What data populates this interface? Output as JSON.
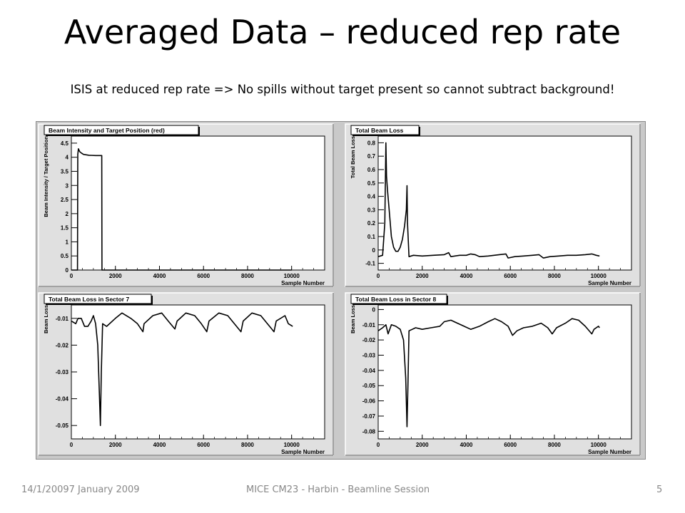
{
  "slide": {
    "title": "Averaged Data – reduced rep rate",
    "subtitle": "ISIS at reduced rep rate => No spills without target present so cannot subtract background!",
    "footer_date": "14/1/20097 January 2009",
    "footer_center": "MICE CM23 - Harbin - Beamline Session",
    "page_number": "5"
  },
  "chart_data": [
    {
      "type": "line",
      "title": "Beam Intensity and Target Position (red)",
      "xlabel": "Sample Number",
      "ylabel": "Beam Intensity / Target Position",
      "xlim": [
        0,
        11500
      ],
      "ylim": [
        0,
        4.75
      ],
      "xticks": [
        0,
        2000,
        4000,
        6000,
        8000,
        10000
      ],
      "xtick_labels": [
        "0",
        "2000",
        "4000",
        "6000",
        "8000",
        "10000"
      ],
      "yticks": [
        0,
        0.5,
        1,
        1.5,
        2,
        2.5,
        3,
        3.5,
        4,
        4.5
      ],
      "ytick_labels": [
        "0",
        "0.5",
        "1",
        "1.5",
        "2",
        "2.5",
        "3",
        "3.5",
        "4",
        "4.5"
      ],
      "grid": false,
      "series": [
        {
          "points": [
            [
              0,
              0
            ],
            [
              280,
              0
            ],
            [
              290,
              4.1
            ],
            [
              320,
              4.3
            ],
            [
              380,
              4.2
            ],
            [
              450,
              4.15
            ],
            [
              550,
              4.1
            ],
            [
              800,
              4.07
            ],
            [
              1100,
              4.06
            ],
            [
              1380,
              4.06
            ],
            [
              1390,
              0
            ],
            [
              10000,
              0
            ]
          ],
          "color": "#000000"
        }
      ]
    },
    {
      "type": "line",
      "title": "Total Beam Loss",
      "xlabel": "Sample Number",
      "ylabel": "Total Beam Loss",
      "xlim": [
        0,
        11500
      ],
      "ylim": [
        -0.15,
        0.85
      ],
      "xticks": [
        0,
        2000,
        4000,
        6000,
        8000,
        10000
      ],
      "xtick_labels": [
        "0",
        "2000",
        "4000",
        "6000",
        "8000",
        "10000"
      ],
      "yticks": [
        -0.1,
        0,
        0.1,
        0.2,
        0.3,
        0.4,
        0.5,
        0.6,
        0.7,
        0.8
      ],
      "ytick_labels": [
        "-0.1",
        "0",
        "0.1",
        "0.2",
        "0.3",
        "0.4",
        "0.5",
        "0.6",
        "0.7",
        "0.8"
      ],
      "grid": false,
      "series": [
        {
          "points": [
            [
              0,
              -0.05
            ],
            [
              200,
              -0.04
            ],
            [
              300,
              0.2
            ],
            [
              350,
              0.8
            ],
            [
              380,
              0.55
            ],
            [
              420,
              0.45
            ],
            [
              500,
              0.3
            ],
            [
              600,
              0.1
            ],
            [
              700,
              0.02
            ],
            [
              800,
              -0.01
            ],
            [
              900,
              -0.01
            ],
            [
              1000,
              0.02
            ],
            [
              1100,
              0.08
            ],
            [
              1200,
              0.18
            ],
            [
              1280,
              0.3
            ],
            [
              1310,
              0.48
            ],
            [
              1330,
              0.2
            ],
            [
              1400,
              -0.05
            ],
            [
              1600,
              -0.04
            ],
            [
              2000,
              -0.045
            ],
            [
              2500,
              -0.04
            ],
            [
              3000,
              -0.035
            ],
            [
              3200,
              -0.02
            ],
            [
              3300,
              -0.05
            ],
            [
              3700,
              -0.04
            ],
            [
              4000,
              -0.04
            ],
            [
              4200,
              -0.03
            ],
            [
              4400,
              -0.035
            ],
            [
              4600,
              -0.05
            ],
            [
              5000,
              -0.045
            ],
            [
              5500,
              -0.035
            ],
            [
              5800,
              -0.03
            ],
            [
              5900,
              -0.06
            ],
            [
              6200,
              -0.05
            ],
            [
              6600,
              -0.045
            ],
            [
              7000,
              -0.04
            ],
            [
              7300,
              -0.035
            ],
            [
              7500,
              -0.06
            ],
            [
              7800,
              -0.05
            ],
            [
              8200,
              -0.045
            ],
            [
              8600,
              -0.04
            ],
            [
              9000,
              -0.04
            ],
            [
              9400,
              -0.035
            ],
            [
              9700,
              -0.03
            ],
            [
              9900,
              -0.04
            ],
            [
              10050,
              -0.045
            ]
          ],
          "color": "#000000"
        }
      ]
    },
    {
      "type": "line",
      "title": "Total Beam Loss in Sector 7",
      "xlabel": "Sample Number",
      "ylabel": "Beam Loss",
      "xlim": [
        0,
        11500
      ],
      "ylim": [
        -0.055,
        -0.005
      ],
      "xticks": [
        0,
        2000,
        4000,
        6000,
        8000,
        10000
      ],
      "xtick_labels": [
        "0",
        "2000",
        "4000",
        "6000",
        "8000",
        "10000"
      ],
      "yticks": [
        -0.05,
        -0.04,
        -0.03,
        -0.02,
        -0.01
      ],
      "ytick_labels": [
        "-0.05",
        "-0.04",
        "-0.03",
        "-0.02",
        "-0.01"
      ],
      "grid": false,
      "series": [
        {
          "points": [
            [
              0,
              -0.011
            ],
            [
              200,
              -0.012
            ],
            [
              300,
              -0.01
            ],
            [
              450,
              -0.01
            ],
            [
              600,
              -0.013
            ],
            [
              750,
              -0.013
            ],
            [
              900,
              -0.011
            ],
            [
              1000,
              -0.009
            ],
            [
              1100,
              -0.012
            ],
            [
              1200,
              -0.02
            ],
            [
              1280,
              -0.04
            ],
            [
              1320,
              -0.05
            ],
            [
              1360,
              -0.03
            ],
            [
              1420,
              -0.012
            ],
            [
              1600,
              -0.013
            ],
            [
              2000,
              -0.01
            ],
            [
              2300,
              -0.008
            ],
            [
              2700,
              -0.01
            ],
            [
              3000,
              -0.012
            ],
            [
              3250,
              -0.015
            ],
            [
              3300,
              -0.012
            ],
            [
              3700,
              -0.009
            ],
            [
              4100,
              -0.008
            ],
            [
              4400,
              -0.011
            ],
            [
              4700,
              -0.014
            ],
            [
              4800,
              -0.011
            ],
            [
              5200,
              -0.008
            ],
            [
              5600,
              -0.009
            ],
            [
              5900,
              -0.012
            ],
            [
              6150,
              -0.015
            ],
            [
              6250,
              -0.011
            ],
            [
              6700,
              -0.008
            ],
            [
              7100,
              -0.009
            ],
            [
              7400,
              -0.012
            ],
            [
              7700,
              -0.015
            ],
            [
              7800,
              -0.011
            ],
            [
              8200,
              -0.008
            ],
            [
              8600,
              -0.009
            ],
            [
              8900,
              -0.012
            ],
            [
              9200,
              -0.015
            ],
            [
              9300,
              -0.011
            ],
            [
              9700,
              -0.009
            ],
            [
              9850,
              -0.012
            ],
            [
              10050,
              -0.013
            ]
          ],
          "color": "#000000"
        }
      ]
    },
    {
      "type": "line",
      "title": "Total Beam Loss in Sector 8",
      "xlabel": "Sample Number",
      "ylabel": "Beam Loss",
      "xlim": [
        0,
        11500
      ],
      "ylim": [
        -0.085,
        0.003
      ],
      "xticks": [
        0,
        2000,
        4000,
        6000,
        8000,
        10000
      ],
      "xtick_labels": [
        "0",
        "2000",
        "4000",
        "6000",
        "8000",
        "10000"
      ],
      "yticks": [
        -0.08,
        -0.07,
        -0.06,
        -0.05,
        -0.04,
        -0.03,
        -0.02,
        -0.01,
        0
      ],
      "ytick_labels": [
        "-0.08",
        "-0.07",
        "-0.06",
        "-0.05",
        "-0.04",
        "-0.03",
        "-0.02",
        "-0.01",
        "0"
      ],
      "grid": false,
      "series": [
        {
          "points": [
            [
              0,
              -0.014
            ],
            [
              200,
              -0.012
            ],
            [
              350,
              -0.01
            ],
            [
              450,
              -0.016
            ],
            [
              600,
              -0.01
            ],
            [
              800,
              -0.011
            ],
            [
              1000,
              -0.013
            ],
            [
              1150,
              -0.02
            ],
            [
              1250,
              -0.045
            ],
            [
              1310,
              -0.077
            ],
            [
              1350,
              -0.05
            ],
            [
              1400,
              -0.014
            ],
            [
              1700,
              -0.012
            ],
            [
              2000,
              -0.013
            ],
            [
              2400,
              -0.012
            ],
            [
              2800,
              -0.011
            ],
            [
              3000,
              -0.008
            ],
            [
              3300,
              -0.007
            ],
            [
              3600,
              -0.009
            ],
            [
              3900,
              -0.011
            ],
            [
              4200,
              -0.013
            ],
            [
              4600,
              -0.011
            ],
            [
              5000,
              -0.008
            ],
            [
              5300,
              -0.006
            ],
            [
              5600,
              -0.008
            ],
            [
              5900,
              -0.011
            ],
            [
              6100,
              -0.017
            ],
            [
              6300,
              -0.014
            ],
            [
              6600,
              -0.012
            ],
            [
              7000,
              -0.011
            ],
            [
              7400,
              -0.009
            ],
            [
              7700,
              -0.012
            ],
            [
              7900,
              -0.016
            ],
            [
              8100,
              -0.012
            ],
            [
              8500,
              -0.009
            ],
            [
              8800,
              -0.006
            ],
            [
              9100,
              -0.007
            ],
            [
              9400,
              -0.011
            ],
            [
              9700,
              -0.016
            ],
            [
              9800,
              -0.013
            ],
            [
              10000,
              -0.011
            ],
            [
              10050,
              -0.012
            ]
          ],
          "color": "#000000"
        }
      ]
    }
  ]
}
